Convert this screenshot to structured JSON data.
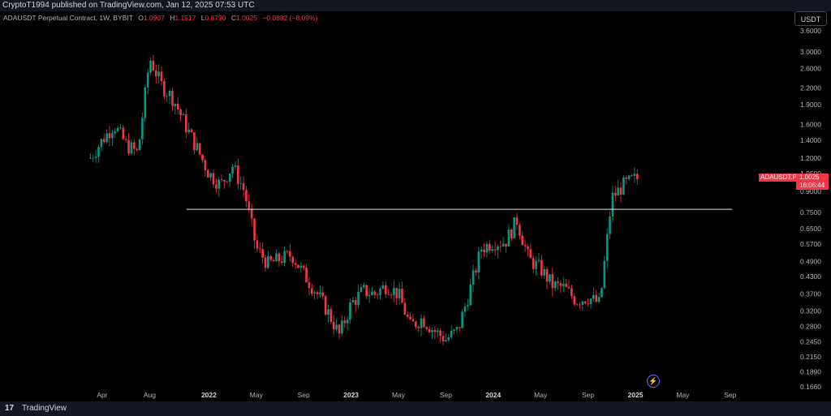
{
  "header": {
    "publisher": "CryptoT1994 published on TradingView.com, Jan 12, 2025 07:53 UTC"
  },
  "legend": {
    "symbol": "ADAUSDT Perpetual Contract, 1W, BYBIT",
    "o_label": "O",
    "o": "1.0907",
    "h_label": "H",
    "h": "1.1517",
    "l_label": "L",
    "l": "0.8790",
    "c_label": "C",
    "c": "1.0025",
    "change": "−0.0882 (−8.09%)"
  },
  "currency_button": "USDT",
  "price_tag": {
    "name": "ADAUSDT.P",
    "price": "1.0025",
    "countdown": "16:06:44"
  },
  "footer": {
    "logo": "17",
    "brand": "TradingView"
  },
  "colors": {
    "up": "#089981",
    "down": "#f23645",
    "level_line": "#e8e8e8",
    "axis_text": "#b2b5be"
  },
  "icons": {
    "event": "lightning-icon"
  },
  "chart_data": {
    "type": "candlestick",
    "y_scale": "log",
    "ylim": [
      0.166,
      3.6
    ],
    "y_ticks": [
      "3.6000",
      "3.0000",
      "2.6000",
      "2.2000",
      "1.9000",
      "1.6000",
      "1.4000",
      "1.2000",
      "1.0500",
      "0.9000",
      "0.7500",
      "0.6500",
      "0.5700",
      "0.4900",
      "0.4300",
      "0.3700",
      "0.3200",
      "0.2800",
      "0.2450",
      "0.2150",
      "0.1890",
      "0.1660"
    ],
    "x_ticks": [
      "Apr",
      "Aug",
      "2022",
      "May",
      "Sep",
      "2023",
      "May",
      "Sep",
      "2024",
      "May",
      "Sep",
      "2025",
      "May",
      "Sep"
    ],
    "horizontal_line": 0.77,
    "approx_weekly_closes_by_month": [
      {
        "t": "2021-03",
        "close": 1.2
      },
      {
        "t": "2021-04",
        "close": 1.4
      },
      {
        "t": "2021-05",
        "close": 1.6
      },
      {
        "t": "2021-06",
        "close": 1.35
      },
      {
        "t": "2021-07",
        "close": 1.25
      },
      {
        "t": "2021-08",
        "close": 2.85
      },
      {
        "t": "2021-09",
        "close": 2.25
      },
      {
        "t": "2021-10",
        "close": 2.0
      },
      {
        "t": "2021-11",
        "close": 1.6
      },
      {
        "t": "2021-12",
        "close": 1.3
      },
      {
        "t": "2022-01",
        "close": 1.05
      },
      {
        "t": "2022-02",
        "close": 0.95
      },
      {
        "t": "2022-03",
        "close": 1.12
      },
      {
        "t": "2022-04",
        "close": 0.9
      },
      {
        "t": "2022-05",
        "close": 0.55
      },
      {
        "t": "2022-06",
        "close": 0.48
      },
      {
        "t": "2022-07",
        "close": 0.5
      },
      {
        "t": "2022-08",
        "close": 0.52
      },
      {
        "t": "2022-09",
        "close": 0.44
      },
      {
        "t": "2022-10",
        "close": 0.38
      },
      {
        "t": "2022-11",
        "close": 0.32
      },
      {
        "t": "2022-12",
        "close": 0.26
      },
      {
        "t": "2023-01",
        "close": 0.34
      },
      {
        "t": "2023-02",
        "close": 0.38
      },
      {
        "t": "2023-03",
        "close": 0.37
      },
      {
        "t": "2023-04",
        "close": 0.4
      },
      {
        "t": "2023-05",
        "close": 0.37
      },
      {
        "t": "2023-06",
        "close": 0.28
      },
      {
        "t": "2023-07",
        "close": 0.3
      },
      {
        "t": "2023-08",
        "close": 0.27
      },
      {
        "t": "2023-09",
        "close": 0.25
      },
      {
        "t": "2023-10",
        "close": 0.27
      },
      {
        "t": "2023-11",
        "close": 0.38
      },
      {
        "t": "2023-12",
        "close": 0.55
      },
      {
        "t": "2024-01",
        "close": 0.58
      },
      {
        "t": "2024-02",
        "close": 0.58
      },
      {
        "t": "2024-03",
        "close": 0.7
      },
      {
        "t": "2024-04",
        "close": 0.5
      },
      {
        "t": "2024-05",
        "close": 0.46
      },
      {
        "t": "2024-06",
        "close": 0.4
      },
      {
        "t": "2024-07",
        "close": 0.39
      },
      {
        "t": "2024-08",
        "close": 0.35
      },
      {
        "t": "2024-09",
        "close": 0.36
      },
      {
        "t": "2024-10",
        "close": 0.34
      },
      {
        "t": "2024-11",
        "close": 0.85
      },
      {
        "t": "2024-12",
        "close": 0.95
      },
      {
        "t": "2025-01",
        "close": 1.0025
      }
    ]
  }
}
